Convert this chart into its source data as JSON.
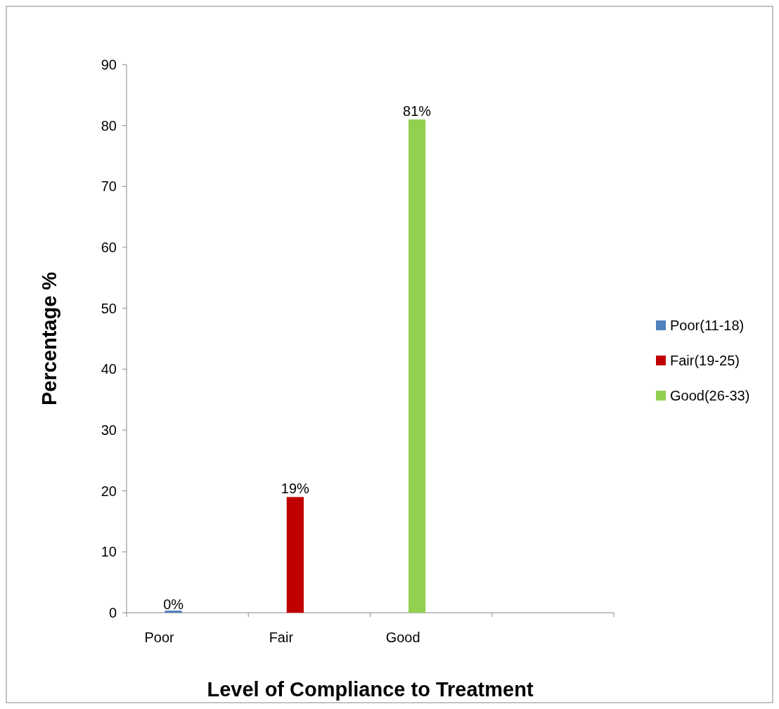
{
  "chart_data": {
    "type": "bar",
    "xlabel": "Level of Compliance to Treatment",
    "ylabel": "Percentage %",
    "categories": [
      "Poor",
      "Fair",
      "Good",
      null
    ],
    "series": [
      {
        "name": "Poor(11-18)",
        "color": "#4f81bd",
        "values": [
          0,
          null,
          null,
          null
        ],
        "value_labels": [
          "0%",
          null,
          null,
          null
        ]
      },
      {
        "name": "Fair(19-25)",
        "color": "#c00000",
        "values": [
          null,
          19,
          null,
          null
        ],
        "value_labels": [
          null,
          "19%",
          null,
          null
        ]
      },
      {
        "name": "Good(26-33)",
        "color": "#92d050",
        "values": [
          null,
          null,
          81,
          null
        ],
        "value_labels": [
          null,
          null,
          "81%",
          null
        ]
      }
    ],
    "ylim": [
      0,
      90
    ],
    "yticks": [
      0,
      10,
      20,
      30,
      40,
      50,
      60,
      70,
      80,
      90
    ],
    "legend": "right"
  }
}
